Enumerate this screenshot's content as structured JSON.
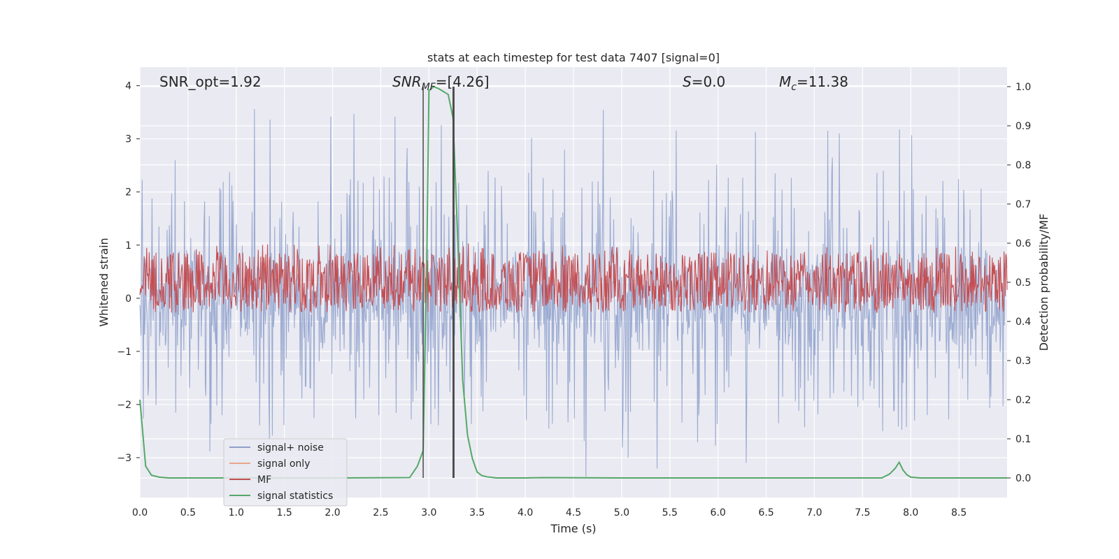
{
  "chart_data": {
    "type": "line",
    "title": "stats at each timestep for test data 7407 [signal=0]",
    "xlabel": "Time (s)",
    "ylabel_left": "Whitened strain",
    "ylabel_right": "Detection probability/MF",
    "xlim": [
      0.0,
      9.0
    ],
    "ylim_left": [
      -3.75,
      4.35
    ],
    "ylim_right": [
      -0.05,
      1.05
    ],
    "xticks": [
      "0.0",
      "0.5",
      "1.0",
      "1.5",
      "2.0",
      "2.5",
      "3.0",
      "3.5",
      "4.0",
      "4.5",
      "5.0",
      "5.5",
      "6.0",
      "6.5",
      "7.0",
      "7.5",
      "8.0",
      "8.5"
    ],
    "yticks_left": [
      "−3",
      "−2",
      "−1",
      "0",
      "1",
      "2",
      "3",
      "4"
    ],
    "yticks_right": [
      "0.0",
      "0.1",
      "0.2",
      "0.3",
      "0.4",
      "0.5",
      "0.6",
      "0.7",
      "0.8",
      "0.9",
      "1.0"
    ],
    "grid": true,
    "legend_position": "lower-left",
    "annotations": {
      "snr_opt": "SNR_opt=1.92",
      "snr_mf_base": "SNR",
      "snr_mf_sub": "MF",
      "snr_mf_value": "=[4.26]",
      "s_base": "S",
      "s_value": "=0.0",
      "mc_base": "M",
      "mc_sub": "c",
      "mc_value": "=11.38"
    },
    "vlines_x": [
      2.94,
      3.25,
      3.26
    ],
    "series": [
      {
        "name": "signal+ noise",
        "color": "#8da0cb",
        "axis": "left",
        "envelope": {
          "pos_typical": 1.2,
          "pos_peak": 3.6,
          "neg_typical": -1.3,
          "neg_peak": -3.4
        }
      },
      {
        "name": "signal only",
        "color": "#e8a58c",
        "axis": "left",
        "values": []
      },
      {
        "name": "MF",
        "color": "#c44e52",
        "axis": "right",
        "envelope": {
          "low": 0.45,
          "high": 0.57,
          "peak": 0.6
        }
      },
      {
        "name": "signal statistics",
        "color": "#55a868",
        "axis": "right",
        "x": [
          0.0,
          0.06,
          0.12,
          0.2,
          0.3,
          1.0,
          2.0,
          2.8,
          2.88,
          2.94,
          2.98,
          3.0,
          3.05,
          3.1,
          3.2,
          3.25,
          3.3,
          3.35,
          3.4,
          3.45,
          3.5,
          3.55,
          3.6,
          3.7,
          4.0,
          4.2,
          5.0,
          6.0,
          7.0,
          7.7,
          7.78,
          7.84,
          7.88,
          7.92,
          7.96,
          8.0,
          8.1,
          9.0
        ],
        "y": [
          0.2,
          0.03,
          0.007,
          0.002,
          0.0,
          0.0,
          0.0,
          0.001,
          0.03,
          0.07,
          0.6,
          0.99,
          1.0,
          0.995,
          0.98,
          0.92,
          0.6,
          0.25,
          0.11,
          0.05,
          0.015,
          0.006,
          0.003,
          0.0,
          0.0,
          0.001,
          0.0,
          0.0,
          0.0,
          0.0,
          0.01,
          0.025,
          0.04,
          0.02,
          0.008,
          0.002,
          0.0,
          0.0
        ]
      }
    ]
  }
}
